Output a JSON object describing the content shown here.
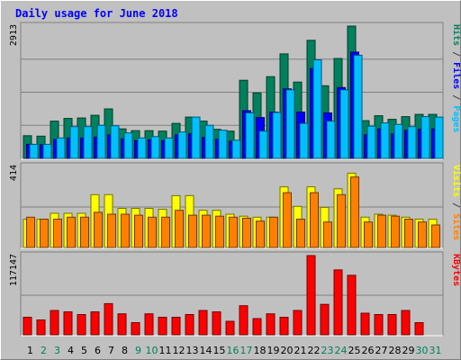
{
  "chart_data": {
    "type": "bar",
    "title": "Daily usage for June 2018",
    "categories": [
      "1",
      "2",
      "3",
      "4",
      "5",
      "6",
      "7",
      "8",
      "9",
      "10",
      "11",
      "12",
      "13",
      "14",
      "15",
      "16",
      "17",
      "18",
      "19",
      "20",
      "21",
      "22",
      "23",
      "24",
      "25",
      "26",
      "27",
      "28",
      "29",
      "30",
      "31"
    ],
    "weekend_days": [
      "2",
      "3",
      "9",
      "10",
      "16",
      "17",
      "23",
      "24",
      "30",
      "31"
    ],
    "panels": [
      {
        "id": "top",
        "ymax_label": "2913",
        "ymax": 2913,
        "axis_labels": [
          {
            "text": "Hits",
            "color": "#00805c"
          },
          {
            "text": " / ",
            "color": "#404040"
          },
          {
            "text": "Files",
            "color": "#0000ff"
          },
          {
            "text": " / ",
            "color": "#404040"
          },
          {
            "text": "Pages",
            "color": "#00c0ff"
          }
        ],
        "series": [
          {
            "name": "Hits",
            "color": "#00805c",
            "values": [
              500,
              490,
              820,
              880,
              890,
              950,
              1090,
              650,
              610,
              610,
              600,
              770,
              910,
              820,
              640,
              600,
              1720,
              1440,
              1800,
              2300,
              1680,
              2600,
              1600,
              2200,
              2913,
              830,
              940,
              860,
              920,
              970,
              970
            ]
          },
          {
            "name": "Files",
            "color": "#0000ff",
            "values": [
              310,
              300,
              420,
              450,
              450,
              470,
              520,
              430,
              390,
              410,
              390,
              520,
              540,
              460,
              420,
              380,
              1050,
              900,
              1020,
              1530,
              1020,
              1980,
              1000,
              1560,
              2340,
              520,
              650,
              540,
              620,
              640,
              650
            ]
          },
          {
            "name": "Pages",
            "color": "#00c0ff",
            "values": [
              310,
              310,
              450,
              700,
              700,
              730,
              720,
              560,
              450,
              480,
              450,
              580,
              910,
              730,
              620,
              400,
              1000,
              600,
              1010,
              1510,
              770,
              2170,
              820,
              1510,
              2270,
              710,
              780,
              750,
              700,
              920,
              910
            ]
          }
        ]
      },
      {
        "id": "middle",
        "ymax_label": "414",
        "ymax": 414,
        "axis_labels": [
          {
            "text": "Visits",
            "color": "#ffff00"
          },
          {
            "text": " / ",
            "color": "#404040"
          },
          {
            "text": "Sites",
            "color": "#ff8000"
          }
        ],
        "series": [
          {
            "name": "Visits",
            "color": "#ffff00",
            "values": [
              145,
              145,
              175,
              175,
              175,
              270,
              270,
              200,
              200,
              200,
              195,
              265,
              265,
              190,
              190,
              170,
              160,
              155,
              155,
              310,
              210,
              310,
              205,
              300,
              380,
              155,
              170,
              165,
              155,
              145,
              145
            ]
          },
          {
            "name": "Sites",
            "color": "#ff8000",
            "values": [
              155,
              145,
              145,
              155,
              155,
              180,
              170,
              170,
              165,
              155,
              155,
              190,
              165,
              165,
              160,
              155,
              150,
              135,
              155,
              280,
              145,
              280,
              130,
              270,
              360,
              130,
              165,
              160,
              145,
              130,
              115
            ]
          }
        ]
      },
      {
        "id": "bottom",
        "ymax_label": "117147",
        "ymax": 117147,
        "axis_labels": [
          {
            "text": "KBytes",
            "color": "#ff0000"
          }
        ],
        "series": [
          {
            "name": "KBytes",
            "color": "#ff0000",
            "values": [
              26000,
              22000,
              36000,
              34000,
              30000,
              34000,
              46000,
              31000,
              18000,
              31000,
              26000,
              26000,
              30000,
              36000,
              34000,
              20000,
              43000,
              24000,
              31000,
              26000,
              36000,
              117147,
              45000,
              96000,
              88000,
              32000,
              30000,
              30000,
              36000,
              18000,
              0
            ]
          }
        ]
      }
    ]
  }
}
